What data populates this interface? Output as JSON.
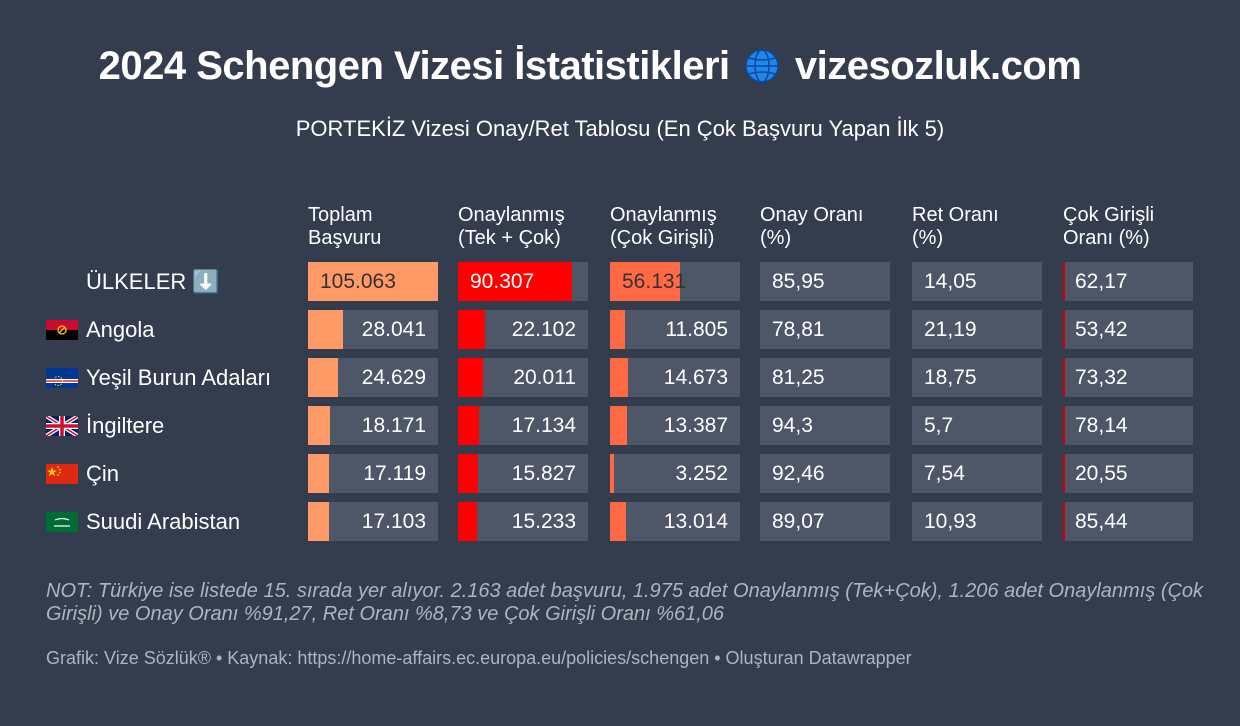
{
  "title": "2024 Schengen Vizesi İstatistikleri",
  "title_site": "vizesozluk.com",
  "subtitle": "PORTEKİZ Vizesi Onay/Ret Tablosu (En Çok Başvuru Yapan İlk 5)",
  "note": "NOT: Türkiye ise listede 15. sırada yer alıyor. 2.163 adet başvuru, 1.975 adet Onaylanmış (Tek+Çok), 1.206 adet Onaylanmış (Çok Girişli) ve Onay Oranı %91,27, Ret Oranı %8,73 ve Çok Girişli Oranı %61,06",
  "footer": "Grafik: Vize Sözlük® • Kaynak: https://home-affairs.ec.europa.eu/policies/schengen • Oluşturan Datawrapper",
  "colors": {
    "background": "#333d4d",
    "cell": "#4e5767",
    "applications": "#ff9966",
    "approved": "#ff0000",
    "approved_multi": "#ff6a45",
    "multi_rate_mark": "#d00000"
  },
  "chart_data": {
    "type": "table",
    "columns": [
      {
        "line1": "Toplam",
        "line2": "Başvuru"
      },
      {
        "line1": "Onaylanmış",
        "line2": "(Tek + Çok)"
      },
      {
        "line1": "Onaylanmış",
        "line2": "(Çok Girişli)"
      },
      {
        "line1": "Onay Oranı",
        "line2": "(%)"
      },
      {
        "line1": "Ret Oranı",
        "line2": "(%)"
      },
      {
        "line1": "Çok Girişli",
        "line2": "Oranı (%)"
      }
    ],
    "rows": [
      {
        "label": "ÜLKELER ⬇️",
        "flag": "",
        "values": [
          "105.063",
          "90.307",
          "56.131",
          "85,95",
          "14,05",
          "62,17"
        ],
        "numbers": [
          105063,
          90307,
          56131
        ]
      },
      {
        "label": "Angola",
        "flag": "angola-flag-icon",
        "values": [
          "28.041",
          "22.102",
          "11.805",
          "78,81",
          "21,19",
          "53,42"
        ],
        "numbers": [
          28041,
          22102,
          11805
        ]
      },
      {
        "label": "Yeşil Burun Adaları",
        "flag": "cape-verde-flag-icon",
        "values": [
          "24.629",
          "20.011",
          "14.673",
          "81,25",
          "18,75",
          "73,32"
        ],
        "numbers": [
          24629,
          20011,
          14673
        ]
      },
      {
        "label": "İngiltere",
        "flag": "uk-flag-icon",
        "values": [
          "18.171",
          "17.134",
          "13.387",
          "94,3",
          "5,7",
          "78,14"
        ],
        "numbers": [
          18171,
          17134,
          13387
        ]
      },
      {
        "label": "Çin",
        "flag": "china-flag-icon",
        "values": [
          "17.119",
          "15.827",
          "3.252",
          "92,46",
          "7,54",
          "20,55"
        ],
        "numbers": [
          17119,
          15827,
          3252
        ]
      },
      {
        "label": "Suudi Arabistan",
        "flag": "saudi-flag-icon",
        "values": [
          "17.103",
          "15.233",
          "13.014",
          "89,07",
          "10,93",
          "85,44"
        ],
        "numbers": [
          17103,
          15233,
          13014
        ]
      }
    ]
  }
}
